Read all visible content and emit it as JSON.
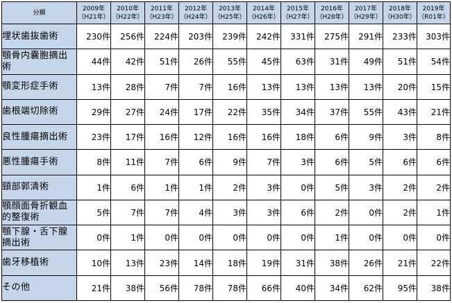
{
  "table": {
    "corner_label": "分類",
    "columns": [
      {
        "year": "2009年",
        "era": "（H21年）"
      },
      {
        "year": "2010年",
        "era": "（H22年）"
      },
      {
        "year": "2011年",
        "era": "（H23年）"
      },
      {
        "year": "2012年",
        "era": "（H24年）"
      },
      {
        "year": "2013年",
        "era": "（H25年）"
      },
      {
        "year": "2014年",
        "era": "（H26年）"
      },
      {
        "year": "2015年",
        "era": "（H27年）"
      },
      {
        "year": "2016年",
        "era": "（H28年）"
      },
      {
        "year": "2017年",
        "era": "（H29年）"
      },
      {
        "year": "2018年",
        "era": "（H30年）"
      },
      {
        "year": "2019年",
        "era": "（R01年）"
      }
    ],
    "rows": [
      {
        "category": "埋状歯抜歯術",
        "values": [
          "230件",
          "256件",
          "224件",
          "203件",
          "239件",
          "242件",
          "331件",
          "275件",
          "291件",
          "233件",
          "303件"
        ]
      },
      {
        "category": "顎骨内嚢胞摘出術",
        "values": [
          "44件",
          "42件",
          "51件",
          "26件",
          "55件",
          "45件",
          "63件",
          "31件",
          "49件",
          "51件",
          "54件"
        ]
      },
      {
        "category": "顎変形症手術",
        "values": [
          "13件",
          "28件",
          "7件",
          "7件",
          "16件",
          "13件",
          "13件",
          "13件",
          "13件",
          "20件",
          "15件"
        ]
      },
      {
        "category": "歯根端切除術",
        "values": [
          "29件",
          "27件",
          "24件",
          "17件",
          "22件",
          "35件",
          "34件",
          "37件",
          "55件",
          "43件",
          "21件"
        ]
      },
      {
        "category": "良性腫瘍摘出術",
        "values": [
          "23件",
          "17件",
          "16件",
          "12件",
          "16件",
          "16件",
          "18件",
          "6件",
          "9件",
          "3件",
          "8件"
        ]
      },
      {
        "category": "悪性腫瘍手術",
        "values": [
          "8件",
          "11件",
          "7件",
          "6件",
          "9件",
          "7件",
          "3件",
          "6件",
          "5件",
          "6件",
          "6件"
        ]
      },
      {
        "category": "頸部郭清術",
        "values": [
          "1件",
          "6件",
          "1件",
          "1件",
          "2件",
          "3件",
          "0件",
          "5件",
          "3件",
          "2件",
          "2件"
        ]
      },
      {
        "category": "顎顔面骨折観血的整復術",
        "values": [
          "5件",
          "7件",
          "7件",
          "4件",
          "3件",
          "3件",
          "6件",
          "2件",
          "0件",
          "2件",
          "1件"
        ]
      },
      {
        "category": "顎下腺・舌下腺摘出術",
        "values": [
          "0件",
          "1件",
          "0件",
          "0件",
          "0件",
          "0件",
          "0件",
          "1件",
          "0件",
          "0件",
          "0件"
        ]
      },
      {
        "category": "歯牙移植術",
        "values": [
          "10件",
          "13件",
          "23件",
          "14件",
          "18件",
          "19件",
          "31件",
          "38件",
          "26件",
          "21件",
          "22件"
        ]
      },
      {
        "category": "その他",
        "values": [
          "21件",
          "38件",
          "56件",
          "78件",
          "78件",
          "66件",
          "40件",
          "34件",
          "62件",
          "95件",
          "38件"
        ]
      }
    ]
  }
}
